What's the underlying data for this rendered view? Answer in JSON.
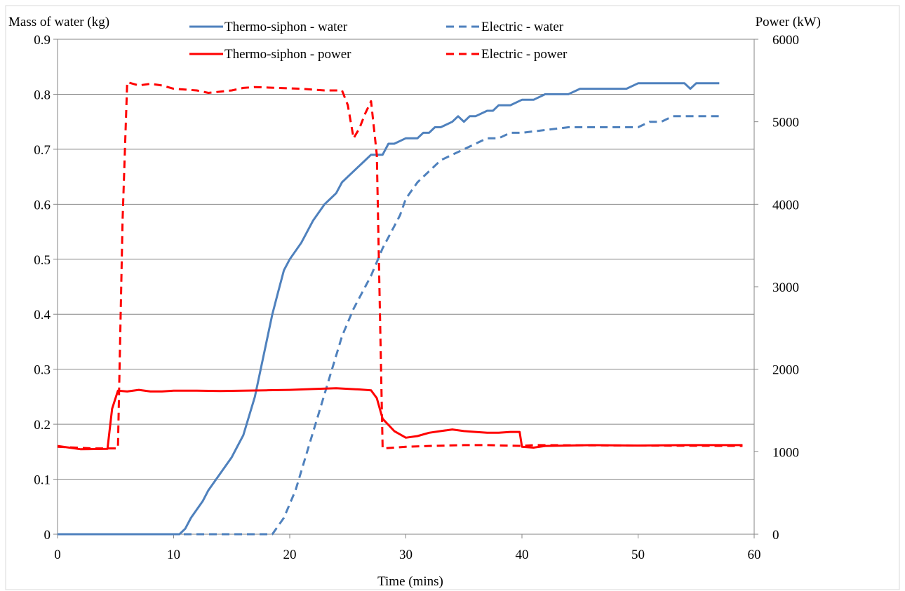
{
  "chart_data": {
    "type": "line",
    "title": "",
    "xlabel": "Time (mins)",
    "ylabel_left": "Mass of water (kg)",
    "ylabel_right": "Power (kW)",
    "xlim": [
      0,
      60
    ],
    "ylim_left": [
      0,
      0.9
    ],
    "ylim_right": [
      0,
      6000
    ],
    "x_ticks": [
      "0",
      "10",
      "20",
      "30",
      "40",
      "50",
      "60"
    ],
    "y_left_ticks": [
      "0",
      "0.1",
      "0.2",
      "0.3",
      "0.4",
      "0.5",
      "0.6",
      "0.7",
      "0.8",
      "0.9"
    ],
    "y_right_ticks": [
      "0",
      "1000",
      "2000",
      "3000",
      "4000",
      "5000",
      "6000"
    ],
    "grid": "horizontal",
    "legend_position": "top",
    "series": [
      {
        "name": "Thermo-siphon - water",
        "axis": "left",
        "color": "#4F81BD",
        "dash": "solid",
        "points": [
          [
            0,
            0
          ],
          [
            10.5,
            0
          ],
          [
            11,
            0.01
          ],
          [
            11.5,
            0.03
          ],
          [
            12.5,
            0.06
          ],
          [
            13,
            0.08
          ],
          [
            14,
            0.11
          ],
          [
            15,
            0.14
          ],
          [
            15.5,
            0.16
          ],
          [
            16,
            0.18
          ],
          [
            17,
            0.25
          ],
          [
            17.5,
            0.3
          ],
          [
            18,
            0.35
          ],
          [
            18.5,
            0.4
          ],
          [
            19,
            0.44
          ],
          [
            19.5,
            0.48
          ],
          [
            20,
            0.5
          ],
          [
            21,
            0.53
          ],
          [
            21.5,
            0.55
          ],
          [
            22,
            0.57
          ],
          [
            23,
            0.6
          ],
          [
            23.5,
            0.61
          ],
          [
            24,
            0.62
          ],
          [
            24.5,
            0.64
          ],
          [
            25,
            0.65
          ],
          [
            26,
            0.67
          ],
          [
            26.5,
            0.68
          ],
          [
            27,
            0.69
          ],
          [
            28,
            0.69
          ],
          [
            28.5,
            0.71
          ],
          [
            29,
            0.71
          ],
          [
            30,
            0.72
          ],
          [
            31,
            0.72
          ],
          [
            31.5,
            0.73
          ],
          [
            32,
            0.73
          ],
          [
            32.5,
            0.74
          ],
          [
            33,
            0.74
          ],
          [
            34,
            0.75
          ],
          [
            34.5,
            0.76
          ],
          [
            35,
            0.75
          ],
          [
            35.5,
            0.76
          ],
          [
            36,
            0.76
          ],
          [
            37,
            0.77
          ],
          [
            37.5,
            0.77
          ],
          [
            38,
            0.78
          ],
          [
            39,
            0.78
          ],
          [
            40,
            0.79
          ],
          [
            41,
            0.79
          ],
          [
            42,
            0.8
          ],
          [
            44,
            0.8
          ],
          [
            45,
            0.81
          ],
          [
            49,
            0.81
          ],
          [
            50,
            0.82
          ],
          [
            54,
            0.82
          ],
          [
            54.5,
            0.81
          ],
          [
            55,
            0.82
          ],
          [
            57,
            0.82
          ]
        ]
      },
      {
        "name": "Electric - water",
        "axis": "left",
        "color": "#4F81BD",
        "dash": "dashed",
        "points": [
          [
            0,
            0
          ],
          [
            18.5,
            0
          ],
          [
            19.5,
            0.03
          ],
          [
            20.5,
            0.08
          ],
          [
            21.5,
            0.15
          ],
          [
            22.5,
            0.22
          ],
          [
            23.5,
            0.29
          ],
          [
            24.5,
            0.36
          ],
          [
            25.5,
            0.41
          ],
          [
            26.5,
            0.45
          ],
          [
            27,
            0.47
          ],
          [
            28,
            0.52
          ],
          [
            29,
            0.56
          ],
          [
            29.5,
            0.58
          ],
          [
            30,
            0.61
          ],
          [
            31,
            0.64
          ],
          [
            32,
            0.66
          ],
          [
            33,
            0.68
          ],
          [
            34,
            0.69
          ],
          [
            35,
            0.7
          ],
          [
            36,
            0.71
          ],
          [
            37,
            0.72
          ],
          [
            38,
            0.72
          ],
          [
            39,
            0.73
          ],
          [
            40,
            0.73
          ],
          [
            44,
            0.74
          ],
          [
            50,
            0.74
          ],
          [
            51,
            0.75
          ],
          [
            52,
            0.75
          ],
          [
            53,
            0.76
          ],
          [
            57,
            0.76
          ]
        ]
      },
      {
        "name": "Thermo-siphon - power",
        "axis": "right",
        "color": "#FF0000",
        "dash": "solid",
        "points": [
          [
            0,
            1070
          ],
          [
            2,
            1030
          ],
          [
            4.3,
            1035
          ],
          [
            4.7,
            1520
          ],
          [
            5.2,
            1740
          ],
          [
            6,
            1730
          ],
          [
            7,
            1750
          ],
          [
            8,
            1730
          ],
          [
            9,
            1730
          ],
          [
            10,
            1740
          ],
          [
            12,
            1740
          ],
          [
            14,
            1735
          ],
          [
            16,
            1740
          ],
          [
            18,
            1745
          ],
          [
            20,
            1750
          ],
          [
            22,
            1760
          ],
          [
            24,
            1770
          ],
          [
            26,
            1755
          ],
          [
            27,
            1745
          ],
          [
            27.5,
            1650
          ],
          [
            28,
            1400
          ],
          [
            29,
            1250
          ],
          [
            30,
            1170
          ],
          [
            31,
            1190
          ],
          [
            32,
            1230
          ],
          [
            33,
            1250
          ],
          [
            34,
            1270
          ],
          [
            35,
            1250
          ],
          [
            36,
            1240
          ],
          [
            37,
            1230
          ],
          [
            38,
            1230
          ],
          [
            39,
            1240
          ],
          [
            39.8,
            1240
          ],
          [
            40,
            1060
          ],
          [
            41,
            1050
          ],
          [
            42,
            1070
          ],
          [
            46,
            1080
          ],
          [
            50,
            1075
          ],
          [
            54,
            1080
          ],
          [
            59,
            1080
          ]
        ]
      },
      {
        "name": "Electric - power",
        "axis": "right",
        "color": "#FF0000",
        "dash": "dashed",
        "points": [
          [
            0,
            1060
          ],
          [
            3,
            1040
          ],
          [
            5.2,
            1040
          ],
          [
            5.6,
            3800
          ],
          [
            6,
            5480
          ],
          [
            7,
            5440
          ],
          [
            8,
            5460
          ],
          [
            9,
            5440
          ],
          [
            10,
            5400
          ],
          [
            12,
            5380
          ],
          [
            13,
            5350
          ],
          [
            15,
            5380
          ],
          [
            16,
            5410
          ],
          [
            17,
            5420
          ],
          [
            19,
            5410
          ],
          [
            21,
            5400
          ],
          [
            23,
            5380
          ],
          [
            24.5,
            5380
          ],
          [
            25,
            5200
          ],
          [
            25.5,
            4800
          ],
          [
            26,
            4920
          ],
          [
            26.5,
            5100
          ],
          [
            27,
            5250
          ],
          [
            27.5,
            4600
          ],
          [
            28,
            1040
          ],
          [
            30,
            1060
          ],
          [
            32,
            1070
          ],
          [
            35,
            1080
          ],
          [
            37,
            1080
          ],
          [
            40,
            1070
          ],
          [
            41,
            1080
          ],
          [
            59,
            1070
          ]
        ]
      }
    ]
  }
}
